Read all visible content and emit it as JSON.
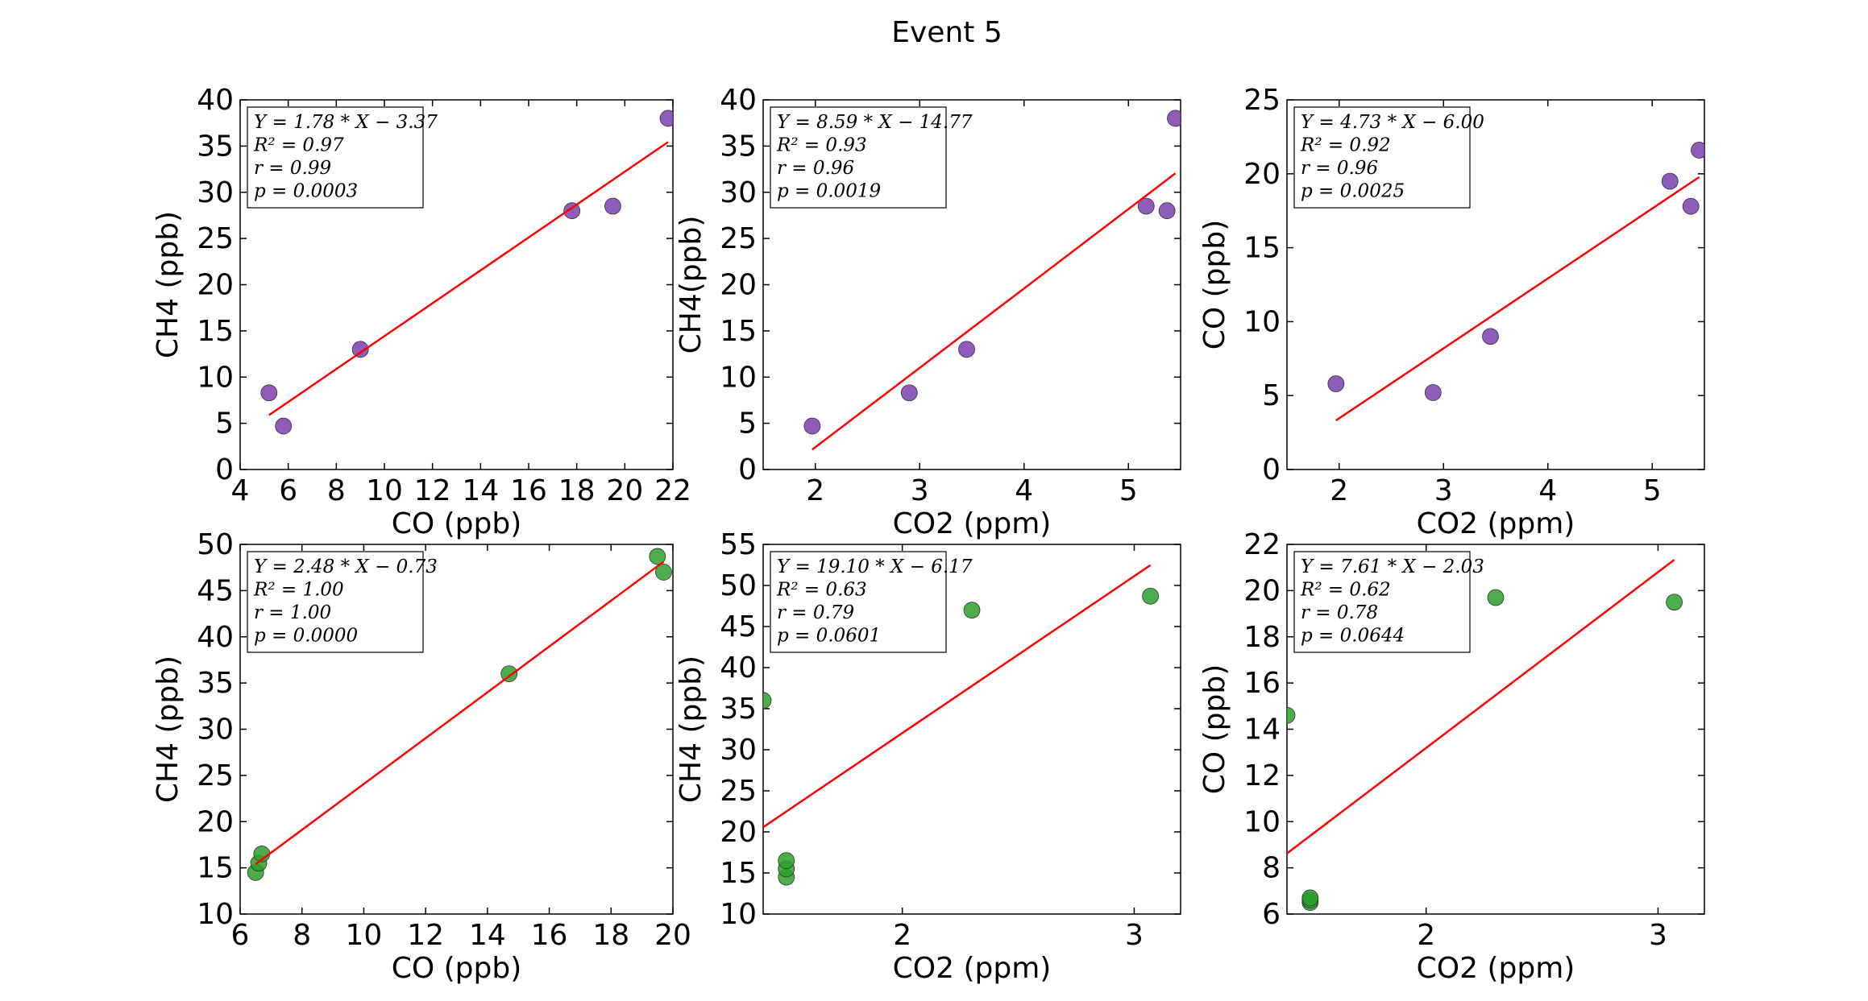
{
  "figure": {
    "title": "Event 5"
  },
  "chart_data": [
    {
      "type": "scatter",
      "xlabel": "CO (ppb)",
      "ylabel": "CH4 (ppb)",
      "xlim": [
        4,
        22
      ],
      "ylim": [
        0,
        40
      ],
      "xticks": [
        4,
        6,
        8,
        10,
        12,
        14,
        16,
        18,
        20,
        22
      ],
      "yticks": [
        0,
        5,
        10,
        15,
        20,
        25,
        30,
        35,
        40
      ],
      "point_color": "#7d3fb0",
      "points": [
        [
          5.2,
          8.3
        ],
        [
          5.8,
          4.7
        ],
        [
          9.0,
          13.0
        ],
        [
          17.8,
          28.0
        ],
        [
          19.5,
          28.5
        ],
        [
          21.8,
          38.0
        ]
      ],
      "fit": {
        "slope": 1.78,
        "intercept": -3.37,
        "x_range": [
          5.2,
          21.8
        ]
      },
      "annotation": [
        "Y = 1.78 * X − 3.37",
        "R² = 0.97",
        "r = 0.99",
        "p = 0.0003"
      ]
    },
    {
      "type": "scatter",
      "xlabel": "CO2 (ppm)",
      "ylabel": "CH4(ppb)",
      "xlim": [
        1.5,
        5.5
      ],
      "ylim": [
        0,
        40
      ],
      "xticks": [
        2,
        3,
        4,
        5
      ],
      "yticks": [
        0,
        5,
        10,
        15,
        20,
        25,
        30,
        35,
        40
      ],
      "point_color": "#7d3fb0",
      "points": [
        [
          1.97,
          4.7
        ],
        [
          2.9,
          8.3
        ],
        [
          3.45,
          13.0
        ],
        [
          5.17,
          28.5
        ],
        [
          5.37,
          28.0
        ],
        [
          5.45,
          38.0
        ]
      ],
      "fit": {
        "slope": 8.59,
        "intercept": -14.77,
        "x_range": [
          1.97,
          5.45
        ]
      },
      "annotation": [
        "Y = 8.59 * X − 14.77",
        "R² = 0.93",
        "r = 0.96",
        "p = 0.0019"
      ]
    },
    {
      "type": "scatter",
      "xlabel": "CO2 (ppm)",
      "ylabel": "CO (ppb)",
      "xlim": [
        1.5,
        5.5
      ],
      "ylim": [
        0,
        25
      ],
      "xticks": [
        2,
        3,
        4,
        5
      ],
      "yticks": [
        0,
        5,
        10,
        15,
        20,
        25
      ],
      "point_color": "#7d3fb0",
      "points": [
        [
          1.97,
          5.8
        ],
        [
          2.9,
          5.2
        ],
        [
          3.45,
          9.0
        ],
        [
          5.17,
          19.5
        ],
        [
          5.37,
          17.8
        ],
        [
          5.45,
          21.6
        ]
      ],
      "fit": {
        "slope": 4.73,
        "intercept": -6.0,
        "x_range": [
          1.97,
          5.45
        ]
      },
      "annotation": [
        "Y = 4.73 * X − 6.00",
        "R² = 0.92",
        "r = 0.96",
        "p = 0.0025"
      ]
    },
    {
      "type": "scatter",
      "xlabel": "CO (ppb)",
      "ylabel": "CH4 (ppb)",
      "xlim": [
        6,
        20
      ],
      "ylim": [
        10,
        50
      ],
      "xticks": [
        6,
        8,
        10,
        12,
        14,
        16,
        18,
        20
      ],
      "yticks": [
        10,
        15,
        20,
        25,
        30,
        35,
        40,
        45,
        50
      ],
      "point_color": "#2ca02c",
      "points": [
        [
          6.5,
          14.5
        ],
        [
          6.6,
          15.5
        ],
        [
          6.7,
          16.5
        ],
        [
          14.7,
          36.0
        ],
        [
          19.5,
          48.7
        ],
        [
          19.7,
          47.0
        ]
      ],
      "fit": {
        "slope": 2.48,
        "intercept": -0.73,
        "x_range": [
          6.5,
          19.7
        ]
      },
      "annotation": [
        "Y = 2.48 * X − 0.73",
        "R² = 1.00",
        "r = 1.00",
        "p = 0.0000"
      ]
    },
    {
      "type": "scatter",
      "xlabel": "CO2 (ppm)",
      "ylabel": "CH4 (ppb)",
      "xlim": [
        1.4,
        3.2
      ],
      "ylim": [
        10,
        55
      ],
      "xticks": [
        2,
        3
      ],
      "yticks": [
        10,
        15,
        20,
        25,
        30,
        35,
        40,
        45,
        50,
        55
      ],
      "point_color": "#2ca02c",
      "points": [
        [
          1.4,
          36.0
        ],
        [
          1.5,
          14.5
        ],
        [
          1.5,
          15.5
        ],
        [
          1.5,
          16.5
        ],
        [
          2.3,
          47.0
        ],
        [
          3.07,
          48.7
        ]
      ],
      "fit": {
        "slope": 19.1,
        "intercept": -6.17,
        "x_range": [
          1.4,
          3.07
        ]
      },
      "annotation": [
        "Y = 19.10 * X − 6.17",
        "R² = 0.63",
        "r = 0.79",
        "p = 0.0601"
      ]
    },
    {
      "type": "scatter",
      "xlabel": "CO2 (ppm)",
      "ylabel": "CO (ppb)",
      "xlim": [
        1.4,
        3.2
      ],
      "ylim": [
        6,
        22
      ],
      "xticks": [
        2,
        3
      ],
      "yticks": [
        6,
        8,
        10,
        12,
        14,
        16,
        18,
        20,
        22
      ],
      "point_color": "#2ca02c",
      "points": [
        [
          1.4,
          14.6
        ],
        [
          1.5,
          6.5
        ],
        [
          1.5,
          6.6
        ],
        [
          1.5,
          6.7
        ],
        [
          2.3,
          19.7
        ],
        [
          3.07,
          19.5
        ]
      ],
      "fit": {
        "slope": 7.61,
        "intercept": -2.03,
        "x_range": [
          1.4,
          3.07
        ]
      },
      "annotation": [
        "Y = 7.61 * X − 2.03",
        "R² = 0.62",
        "r = 0.78",
        "p = 0.0644"
      ]
    }
  ]
}
